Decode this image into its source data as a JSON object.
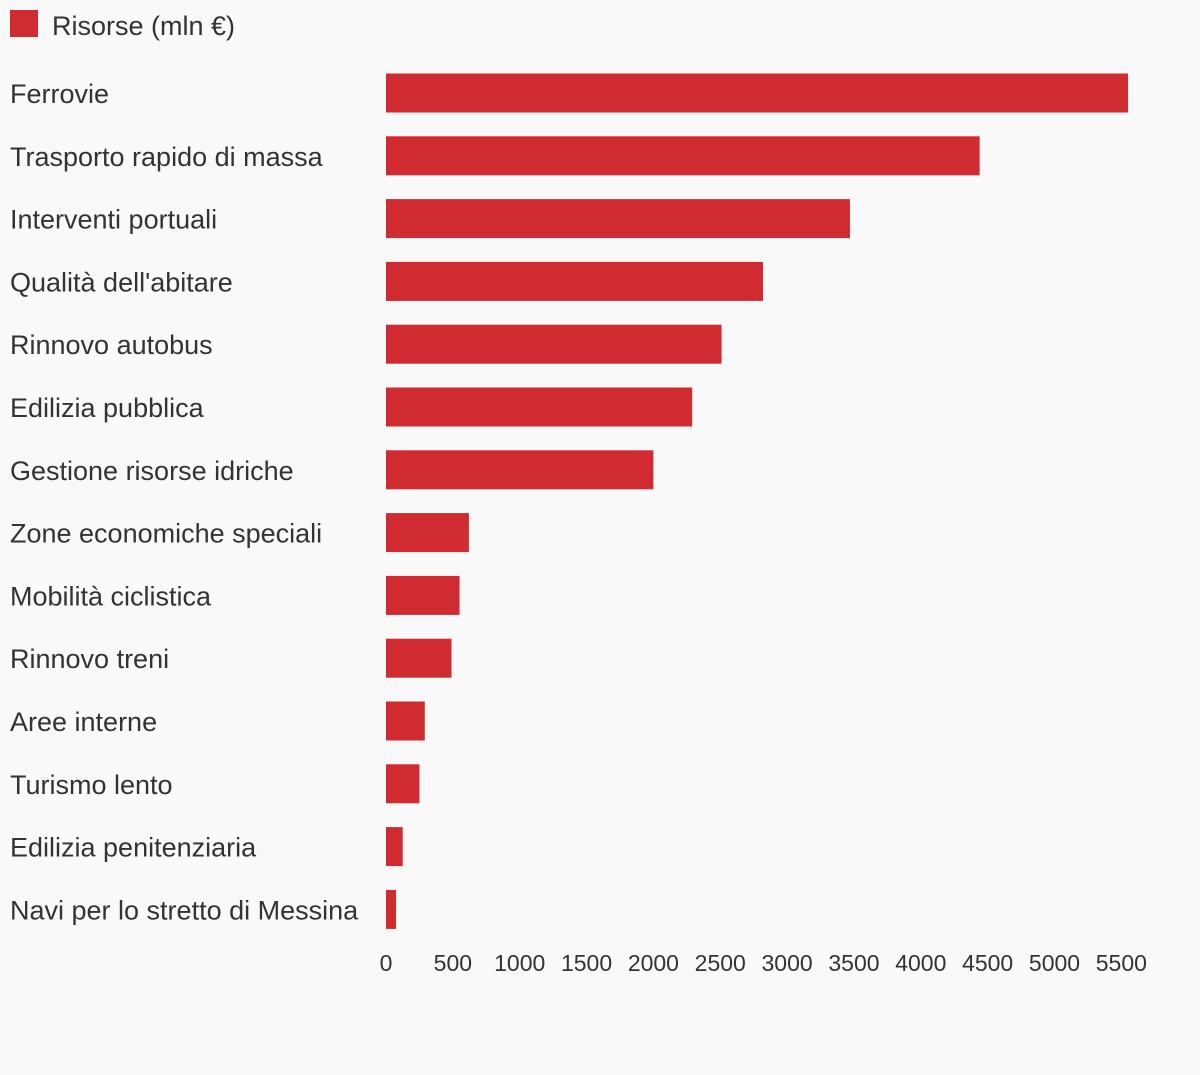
{
  "chart_data": {
    "type": "bar",
    "orientation": "horizontal",
    "legend": {
      "label": "Risorse (mln €)",
      "color": "#d02b31",
      "placement": "top-left"
    },
    "series": [
      {
        "name": "Risorse (mln €)",
        "color": "#d02b31",
        "values": [
          5550,
          4440,
          3470,
          2820,
          2510,
          2290,
          2000,
          620,
          550,
          490,
          290,
          250,
          125,
          75
        ]
      }
    ],
    "categories": [
      "Ferrovie",
      "Trasporto rapido di massa",
      "Interventi portuali",
      "Qualità dell'abitare",
      "Rinnovo autobus",
      "Edilizia pubblica",
      "Gestione risorse idriche",
      "Zone economiche speciali",
      "Mobilità ciclistica",
      "Rinnovo treni",
      "Aree interne",
      "Turismo lento",
      "Edilizia penitenziaria",
      "Navi per lo stretto di Messina"
    ],
    "xlim": [
      0,
      5500
    ],
    "x_ticks": [
      0,
      500,
      1000,
      1500,
      2000,
      2500,
      3000,
      3500,
      4000,
      4500,
      5000,
      5500
    ],
    "x_tick_labels": [
      "0",
      "500",
      "1000",
      "1500",
      "2000",
      "2500",
      "3000",
      "3500",
      "4000",
      "4500",
      "5000",
      "5500"
    ],
    "grid": false,
    "xlabel": "",
    "ylabel": ""
  }
}
